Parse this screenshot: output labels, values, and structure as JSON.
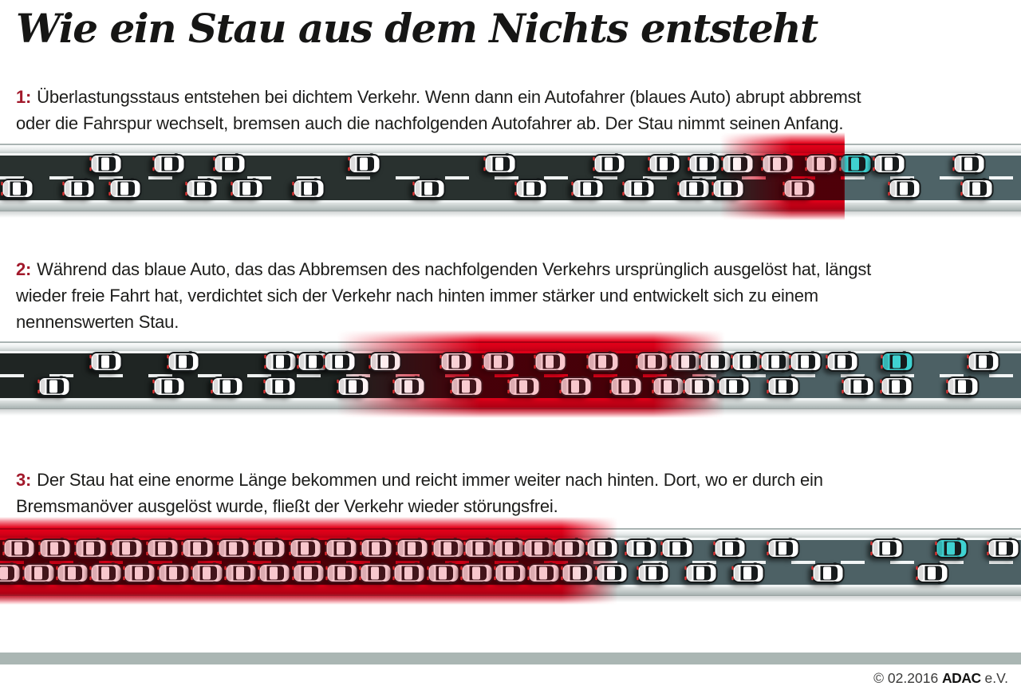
{
  "title": "Wie ein Stau aus dem Nichts entsteht",
  "colors": {
    "accent_red": "#e2001a",
    "jam_red": "#e60019",
    "jam_tint": "rgba(226,0,26,0.22)",
    "number_red": "#a2192b",
    "blue_car": "#3fd2d1",
    "white_car": "#ffffff",
    "footer_bar": "#aab6b3",
    "text": "#1d1d1b"
  },
  "sections": [
    {
      "number": "1:",
      "text": "Überlastungsstaus entstehen bei dichtem Verkehr. Wenn dann ein Autofahrer (blaues Auto) abrupt abbremst\noder die Fahrspur wechselt, bremsen auch die nachfolgenden Autofahrer ab. Der Stau nimmt seinen Anfang."
    },
    {
      "number": "2:",
      "text": "Während das blaue Auto, das das Abbremsen des nachfolgenden Verkehrs ursprünglich ausgelöst hat, längst\nwieder freie Fahrt hat, verdichtet sich der Verkehr nach hinten immer stärker und entwickelt sich zu einem\nnennenswerten Stau."
    },
    {
      "number": "3:",
      "text": "Der Stau hat eine enorme Länge bekommen und reicht immer weiter nach hinten. Dort, wo er durch ein\nBremsmanöver ausgelöst wurde, fließt der Verkehr wieder störungsfrei."
    }
  ],
  "roads": [
    {
      "label": "Phase 1: dichter Verkehr, abruptes Bremsen des blauen Autos",
      "asphalt_dark": "#29312f",
      "asphalt_free": "#4e6367",
      "free_flow": {
        "start_pct": 82.75,
        "blend_pct": 0.15
      },
      "red_zone": {
        "glow_start": 70.5,
        "full_start": 77.5,
        "full_end": 82.7,
        "end": 82.75,
        "hard_end": true
      },
      "top_lane": [
        10.4,
        16.6,
        22.5,
        35.7,
        49.0,
        59.7,
        65.1,
        69.0,
        72.3,
        76.2,
        80.5,
        {
          "pct": 83.8,
          "blue": true
        },
        87.1,
        94.9
      ],
      "bottom_lane": [
        1.7,
        7.7,
        12.3,
        19.8,
        24.2,
        30.2,
        42.0,
        52.0,
        57.6,
        62.6,
        68.0,
        71.3,
        78.3,
        88.6,
        95.7
      ]
    },
    {
      "label": "Phase 2: Verkehr verdichtet sich nach hinten, Stau wächst",
      "asphalt_dark": "#1f2523",
      "asphalt_free": "#4c6064",
      "free_flow": {
        "start_pct": 71.0,
        "blend_pct": 5.0
      },
      "red_zone": {
        "glow_start": 33.0,
        "full_start": 47.0,
        "full_end": 64.0,
        "end": 71.0,
        "hard_end": false
      },
      "top_lane": [
        10.4,
        18.0,
        27.5,
        30.7,
        33.3,
        37.7,
        44.7,
        48.8,
        53.9,
        59.1,
        63.9,
        67.2,
        70.1,
        73.2,
        76.0,
        78.9,
        82.5,
        {
          "pct": 87.9,
          "blue": true
        },
        96.3
      ],
      "bottom_lane": [
        5.3,
        16.6,
        22.3,
        27.4,
        34.6,
        40.1,
        45.7,
        51.3,
        56.4,
        61.3,
        65.5,
        68.5,
        71.9,
        76.7,
        84.1,
        87.8,
        94.3
      ]
    },
    {
      "label": "Phase 3: enorm langer Stau, vorne fließt der Verkehr wieder",
      "asphalt_dark": "#2b3331",
      "asphalt_free": "#4d6165",
      "free_flow": {
        "start_pct": 60.0,
        "blend_pct": 8.0
      },
      "red_zone": {
        "glow_start": 0.0,
        "full_start": 0.0,
        "full_end": 55.0,
        "end": 60.5,
        "hard_end": false
      },
      "top_lane": [
        1.9,
        5.4,
        8.9,
        12.4,
        15.9,
        19.4,
        22.9,
        26.4,
        29.9,
        33.4,
        36.9,
        40.4,
        43.9,
        47.0,
        49.9,
        52.8,
        55.8,
        59.0,
        62.8,
        66.3,
        71.5,
        76.7,
        86.9,
        {
          "pct": 93.2,
          "blue": true
        },
        98.3
      ],
      "bottom_lane": [
        0.5,
        3.8,
        7.1,
        10.4,
        13.7,
        17.0,
        20.3,
        23.6,
        26.9,
        30.2,
        33.5,
        36.8,
        40.1,
        43.4,
        46.7,
        50.0,
        53.3,
        56.6,
        59.9,
        64.0,
        68.7,
        73.3,
        81.1,
        91.3
      ]
    }
  ],
  "footer": {
    "copyright_prefix": "© 02.2016 ",
    "brand": "ADAC",
    "suffix": " e.V."
  }
}
